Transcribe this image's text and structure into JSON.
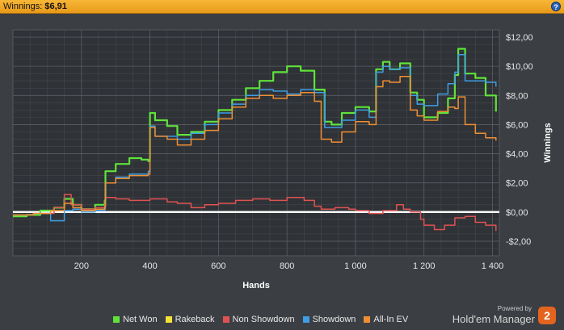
{
  "header": {
    "label": "Winnings:",
    "value": "$6,91",
    "help_icon": "question-icon"
  },
  "brand": {
    "powered": "Powered by",
    "name": "Hold'em Manager",
    "badge": "2"
  },
  "chart_data": {
    "type": "line",
    "xlabel": "Hands",
    "ylabel": "Winnings",
    "xlim": [
      0,
      1420
    ],
    "ylim": [
      -3,
      12.5
    ],
    "x_ticks": [
      200,
      400,
      600,
      800,
      1000,
      1200,
      1400
    ],
    "x_tick_labels": [
      "200",
      "400",
      "600",
      "800",
      "1 000",
      "1 200",
      "1 400"
    ],
    "y_ticks": [
      -2,
      0,
      2,
      4,
      6,
      8,
      10,
      12
    ],
    "y_tick_labels": [
      "-$2,00",
      "$0,00",
      "$2,00",
      "$4,00",
      "$6,00",
      "$8,00",
      "$10,00",
      "$12,00"
    ],
    "grid": true,
    "legend_position": "bottom",
    "series": [
      {
        "name": "Net Won",
        "color": "#5fe33a",
        "x": [
          0,
          40,
          80,
          120,
          150,
          175,
          200,
          240,
          268,
          270,
          300,
          340,
          375,
          395,
          400,
          415,
          450,
          480,
          520,
          560,
          600,
          640,
          680,
          720,
          760,
          800,
          840,
          880,
          910,
          930,
          960,
          1000,
          1040,
          1060,
          1080,
          1100,
          1130,
          1160,
          1180,
          1200,
          1240,
          1270,
          1290,
          1300,
          1320,
          1350,
          1380,
          1410
        ],
        "y": [
          -0.3,
          -0.2,
          0.1,
          0.3,
          0.9,
          0.5,
          0.2,
          0.5,
          0.8,
          2.8,
          3.3,
          3.7,
          3.6,
          3.5,
          6.8,
          6.3,
          5.9,
          5.3,
          5.5,
          6.2,
          7.0,
          7.7,
          8.5,
          9.0,
          9.6,
          10.0,
          9.7,
          8.4,
          6.2,
          6.0,
          6.8,
          7.2,
          6.9,
          9.8,
          10.3,
          9.8,
          10.2,
          8.2,
          7.7,
          6.5,
          6.8,
          7.8,
          9.4,
          11.2,
          9.5,
          9.2,
          8.0,
          6.9
        ]
      },
      {
        "name": "Rakeback",
        "color": "#f2e23a",
        "x": [
          0,
          1410
        ],
        "y": [
          0,
          0
        ]
      },
      {
        "name": "Non Showdown",
        "color": "#e05252",
        "x": [
          0,
          60,
          120,
          150,
          170,
          200,
          240,
          268,
          270,
          300,
          340,
          400,
          450,
          480,
          520,
          560,
          600,
          650,
          700,
          750,
          800,
          850,
          880,
          900,
          940,
          980,
          1000,
          1040,
          1080,
          1120,
          1140,
          1160,
          1190,
          1200,
          1230,
          1260,
          1290,
          1320,
          1350,
          1380,
          1410
        ],
        "y": [
          -0.2,
          -0.1,
          0.3,
          1.2,
          0.5,
          0.2,
          0.3,
          0.5,
          1.0,
          0.9,
          0.8,
          0.9,
          0.7,
          0.6,
          0.3,
          0.5,
          0.6,
          0.8,
          0.9,
          0.8,
          1.0,
          0.8,
          0.4,
          0.2,
          0.3,
          0.2,
          0.1,
          -0.1,
          0.1,
          0.5,
          0.2,
          0.0,
          -0.5,
          -0.9,
          -1.2,
          -0.9,
          -0.4,
          -0.3,
          -0.7,
          -0.9,
          -1.3
        ]
      },
      {
        "name": "Showdown",
        "color": "#3e9ee6",
        "x": [
          0,
          60,
          110,
          150,
          175,
          200,
          240,
          268,
          270,
          300,
          340,
          395,
          400,
          415,
          450,
          480,
          520,
          560,
          600,
          640,
          680,
          720,
          760,
          800,
          840,
          880,
          910,
          960,
          1000,
          1040,
          1060,
          1080,
          1100,
          1130,
          1160,
          1180,
          1200,
          1240,
          1270,
          1290,
          1300,
          1320,
          1350,
          1380,
          1410
        ],
        "y": [
          -0.2,
          -0.1,
          -0.6,
          0.1,
          0.2,
          0.0,
          0.1,
          0.2,
          2.0,
          2.4,
          2.6,
          2.8,
          5.9,
          5.2,
          5.2,
          5.0,
          5.4,
          6.0,
          6.8,
          7.4,
          8.0,
          8.4,
          8.3,
          8.1,
          8.4,
          8.2,
          5.8,
          6.3,
          7.0,
          6.5,
          9.6,
          10.0,
          9.8,
          9.9,
          8.0,
          7.4,
          7.3,
          8.1,
          8.8,
          9.6,
          10.8,
          9.0,
          9.0,
          8.9,
          8.6
        ]
      },
      {
        "name": "All-In EV",
        "color": "#ef8f34",
        "x": [
          0,
          60,
          110,
          150,
          175,
          200,
          240,
          268,
          270,
          300,
          340,
          395,
          400,
          415,
          450,
          480,
          520,
          560,
          600,
          640,
          680,
          720,
          760,
          800,
          840,
          880,
          900,
          930,
          960,
          1000,
          1040,
          1060,
          1080,
          1100,
          1130,
          1160,
          1180,
          1200,
          1240,
          1270,
          1290,
          1300,
          1320,
          1350,
          1380,
          1410
        ],
        "y": [
          -0.2,
          -0.1,
          0.1,
          0.6,
          0.3,
          0.1,
          0.2,
          0.4,
          2.0,
          2.3,
          2.5,
          2.6,
          5.8,
          5.2,
          5.0,
          4.6,
          5.0,
          5.6,
          6.4,
          7.2,
          7.8,
          8.0,
          7.8,
          8.0,
          8.2,
          7.6,
          5.0,
          4.8,
          5.5,
          6.2,
          6.0,
          8.6,
          9.0,
          8.9,
          9.3,
          7.0,
          6.6,
          6.3,
          6.9,
          7.2,
          7.1,
          7.9,
          6.0,
          5.4,
          5.1,
          4.9
        ]
      }
    ]
  }
}
